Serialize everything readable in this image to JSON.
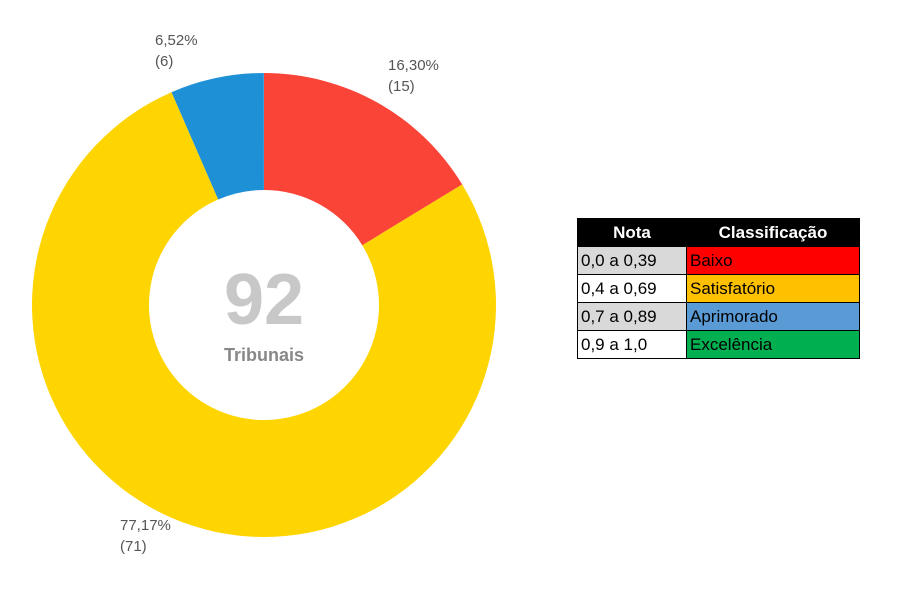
{
  "chart_data": {
    "type": "donut",
    "values": [
      16.3,
      77.17,
      6.52
    ],
    "value_labels": [
      "16,30%",
      "77,17%",
      "6,52%"
    ],
    "counts": [
      15,
      71,
      6
    ],
    "count_labels": [
      "(15)",
      "(71)",
      "(6)"
    ],
    "colors": [
      "#fb4438",
      "#fed500",
      "#1e90d6"
    ],
    "center_value": 92,
    "center_label": "Tribunais"
  },
  "table": {
    "header": [
      "Nota",
      "Classificação"
    ],
    "rows": [
      [
        "0,0 a 0,39",
        "Baixo"
      ],
      [
        "0,4 a 0,69",
        "Satisfatório"
      ],
      [
        "0,7 a 0,89",
        "Aprimorado"
      ],
      [
        "0,9 a 1,0",
        "Excelência"
      ]
    ],
    "row_colors": [
      "#ff0000",
      "#ffc000",
      "#5b9bd5",
      "#00b050"
    ]
  }
}
